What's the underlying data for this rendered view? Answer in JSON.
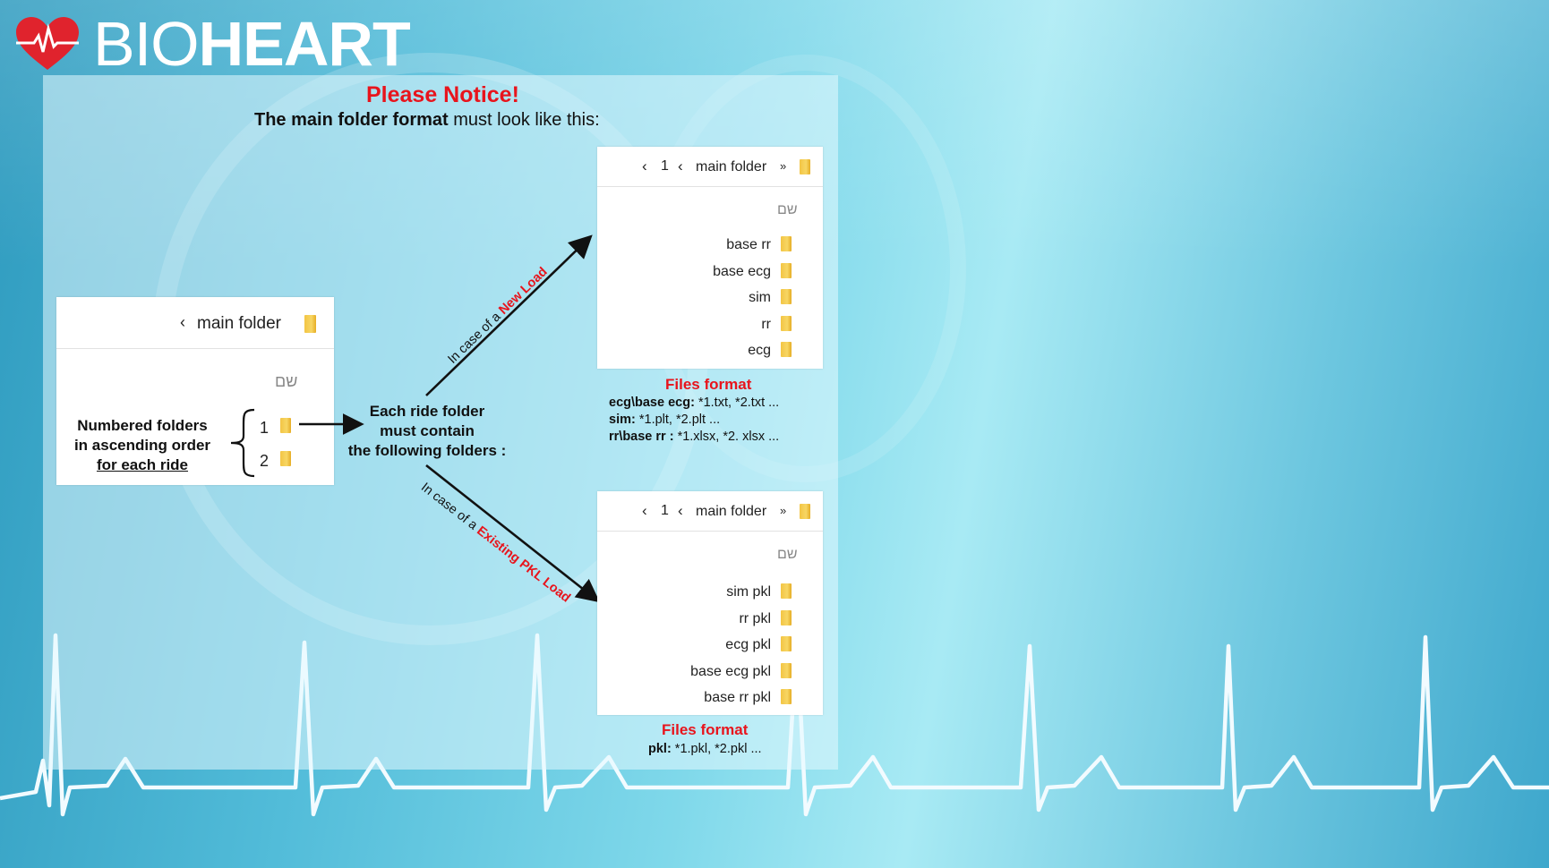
{
  "brand": {
    "prefix": "BIO",
    "suffix": "HEART",
    "logo_icon": "heart-pulse-icon"
  },
  "notice": {
    "title": "Please Notice!",
    "subtitle_bold": "The main folder format",
    "subtitle_rest": " must look like this:"
  },
  "left_explorer": {
    "path": "main folder",
    "column_label": "שם",
    "items": [
      "1",
      "2"
    ]
  },
  "numbered_note": {
    "line1": "Numbered  folders",
    "line2": "in ascending order",
    "line3": "for each ride"
  },
  "ride_note": {
    "line1": "Each ride folder",
    "line2": "must contain",
    "line3": "the following folders :"
  },
  "branch_new": {
    "prefix": "In case of a ",
    "highlight": "New Load"
  },
  "branch_existing": {
    "prefix": "In case of a ",
    "highlight": "Existing PKL Load"
  },
  "top_explorer": {
    "path_num": "1",
    "path_folder": "main folder",
    "column_label": "שם",
    "items": [
      "base rr",
      "base ecg",
      "sim",
      "rr",
      "ecg"
    ]
  },
  "top_files": {
    "title": "Files format",
    "lines": [
      {
        "key": "ecg\\base ecg:",
        "val": " *1.txt, *2.txt ..."
      },
      {
        "key": "sim:",
        "val": " *1.plt, *2.plt ..."
      },
      {
        "key": "rr\\base rr :",
        "val": " *1.xlsx, *2. xlsx ..."
      }
    ]
  },
  "bottom_explorer": {
    "path_num": "1",
    "path_folder": "main folder",
    "column_label": "שם",
    "items": [
      "sim pkl",
      "rr pkl",
      "ecg pkl",
      "base ecg pkl",
      "base rr pkl"
    ]
  },
  "bottom_files": {
    "title": "Files format",
    "lines": [
      {
        "key": "pkl:",
        "val": " *1.pkl, *2.pkl ..."
      }
    ]
  },
  "colors": {
    "accent_red": "#e8141c",
    "folder_yellow": "#f3c544",
    "heart_red": "#e0232d"
  }
}
